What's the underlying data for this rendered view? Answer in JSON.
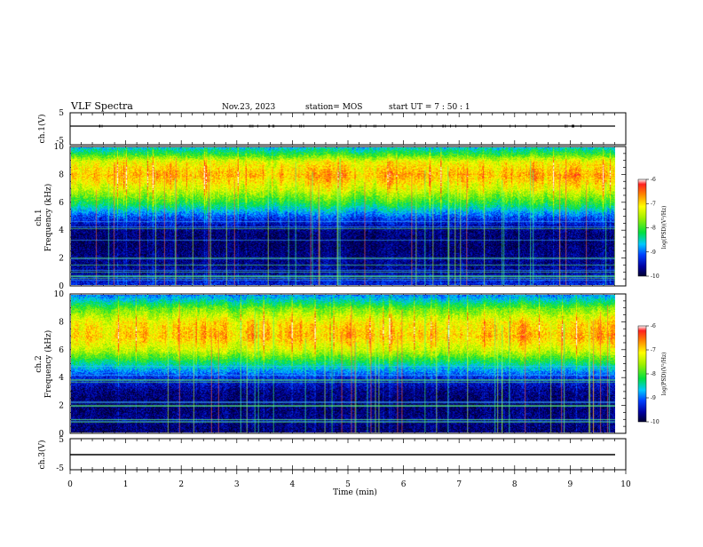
{
  "header": {
    "title": "VLF Spectra",
    "date": "Nov.23, 2023",
    "station": "station= MOS",
    "start": "start  UT =   7 : 50 : 1"
  },
  "chart_data": [
    {
      "type": "line",
      "name": "ch1-waveform",
      "ylabel": "ch.1(V)",
      "ylim": [
        -5,
        5
      ],
      "yticks": [
        "5",
        "-5"
      ],
      "x": [
        0,
        9.83
      ],
      "values": [
        0,
        0
      ]
    },
    {
      "type": "heatmap",
      "name": "ch1-spectrogram",
      "ylabel_top": "ch.1",
      "ylabel": "Frequency (kHz)",
      "ylim": [
        0,
        10
      ],
      "yticks": [
        "0",
        "2",
        "4",
        "6",
        "8",
        "10"
      ],
      "xlim": [
        0,
        9.83
      ],
      "colorbar": {
        "label": "log(PSD)(V²/Hz)",
        "range": [
          -10,
          -6
        ],
        "ticks": [
          "-6",
          "-7",
          "-8",
          "-9",
          "-10"
        ]
      },
      "profile_freq_khz": [
        0,
        1,
        2,
        3,
        4,
        5,
        6,
        7,
        8,
        9,
        9.5,
        10
      ],
      "profile_log_psd": [
        -9.3,
        -9.6,
        -9.7,
        -9.8,
        -9.7,
        -9.1,
        -8.1,
        -7.3,
        -6.8,
        -7.2,
        -8.0,
        -8.6
      ]
    },
    {
      "type": "heatmap",
      "name": "ch2-spectrogram",
      "ylabel_top": "ch.2",
      "ylabel": "Frequency (kHz)",
      "ylim": [
        0,
        10
      ],
      "yticks": [
        "0",
        "2",
        "4",
        "6",
        "8",
        "10"
      ],
      "xlim": [
        0,
        9.83
      ],
      "colorbar": {
        "label": "log(PSD)(V²/Hz)",
        "range": [
          -10,
          -6
        ],
        "ticks": [
          "-6",
          "-7",
          "-8",
          "-9",
          "-10"
        ]
      },
      "profile_freq_khz": [
        0,
        1,
        2,
        3,
        4,
        5,
        6,
        7,
        8,
        9,
        9.5,
        10
      ],
      "profile_log_psd": [
        -9.8,
        -9.7,
        -9.8,
        -9.7,
        -9.3,
        -8.4,
        -7.4,
        -6.9,
        -7.1,
        -7.8,
        -8.4,
        -8.9
      ]
    },
    {
      "type": "line",
      "name": "ch3-waveform",
      "ylabel": "ch.3(V)",
      "ylim": [
        -5,
        5
      ],
      "yticks": [
        "5",
        "-5"
      ],
      "x": [
        0,
        9.83
      ],
      "values": [
        0,
        0
      ]
    }
  ],
  "xaxis": {
    "label": "Time  (min)",
    "range": [
      0,
      10
    ],
    "ticks": [
      "0",
      "1",
      "2",
      "3",
      "4",
      "5",
      "6",
      "7",
      "8",
      "9",
      "10"
    ]
  },
  "colors": {
    "frame": "#000000",
    "background": "#ffffff"
  }
}
